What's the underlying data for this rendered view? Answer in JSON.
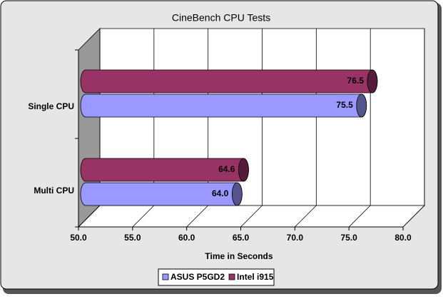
{
  "chart_data": {
    "type": "bar3d",
    "title": "CineBench CPU Tests",
    "x_label": "Time in Seconds",
    "categories": [
      "Single CPU",
      "Multi CPU"
    ],
    "series": [
      {
        "name": "ASUS P5GD2",
        "color": "#9999ff",
        "values": [
          75.5,
          64.0
        ],
        "value_labels": [
          "75.5",
          "64.0"
        ]
      },
      {
        "name": "Intel i915",
        "color": "#993366",
        "values": [
          76.5,
          64.6
        ]
      }
    ],
    "xlim": [
      50,
      80
    ],
    "xticks": [
      {
        "value": 50,
        "label": "50.0"
      },
      {
        "value": 55,
        "label": "55.0"
      },
      {
        "value": 60,
        "label": "60.0"
      },
      {
        "value": 65,
        "label": "65.0"
      },
      {
        "value": 70,
        "label": "70.0"
      },
      {
        "value": 75,
        "label": "75.0"
      },
      {
        "value": 80,
        "label": "80.0"
      }
    ],
    "grid": true,
    "legend": "bottom"
  }
}
